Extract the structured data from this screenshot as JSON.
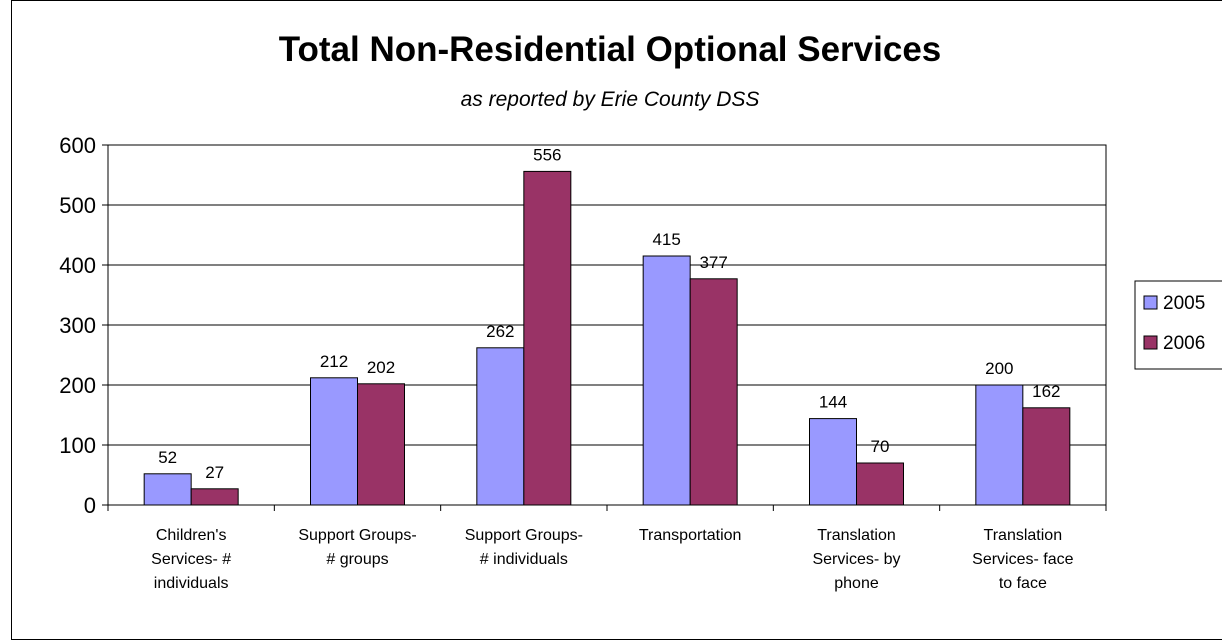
{
  "chart_data": {
    "type": "bar",
    "title": "Total Non-Residential Optional Services",
    "subtitle": "as reported by Erie County DSS",
    "categories": [
      [
        "Children's",
        "Services- #",
        "individuals"
      ],
      [
        "Support Groups-",
        "# groups"
      ],
      [
        "Support Groups-",
        "# individuals"
      ],
      [
        "Transportation"
      ],
      [
        "Translation",
        "Services- by",
        "phone"
      ],
      [
        "Translation",
        "Services- face",
        "to face"
      ]
    ],
    "series": [
      {
        "name": "2005",
        "values": [
          52,
          212,
          262,
          415,
          144,
          200
        ],
        "color": "#9999ff"
      },
      {
        "name": "2006",
        "values": [
          27,
          202,
          556,
          377,
          70,
          162
        ],
        "color": "#993366"
      }
    ],
    "ylim": [
      0,
      600
    ],
    "yticks": [
      0,
      100,
      200,
      300,
      400,
      500,
      600
    ],
    "grid": true,
    "legend": "right"
  }
}
